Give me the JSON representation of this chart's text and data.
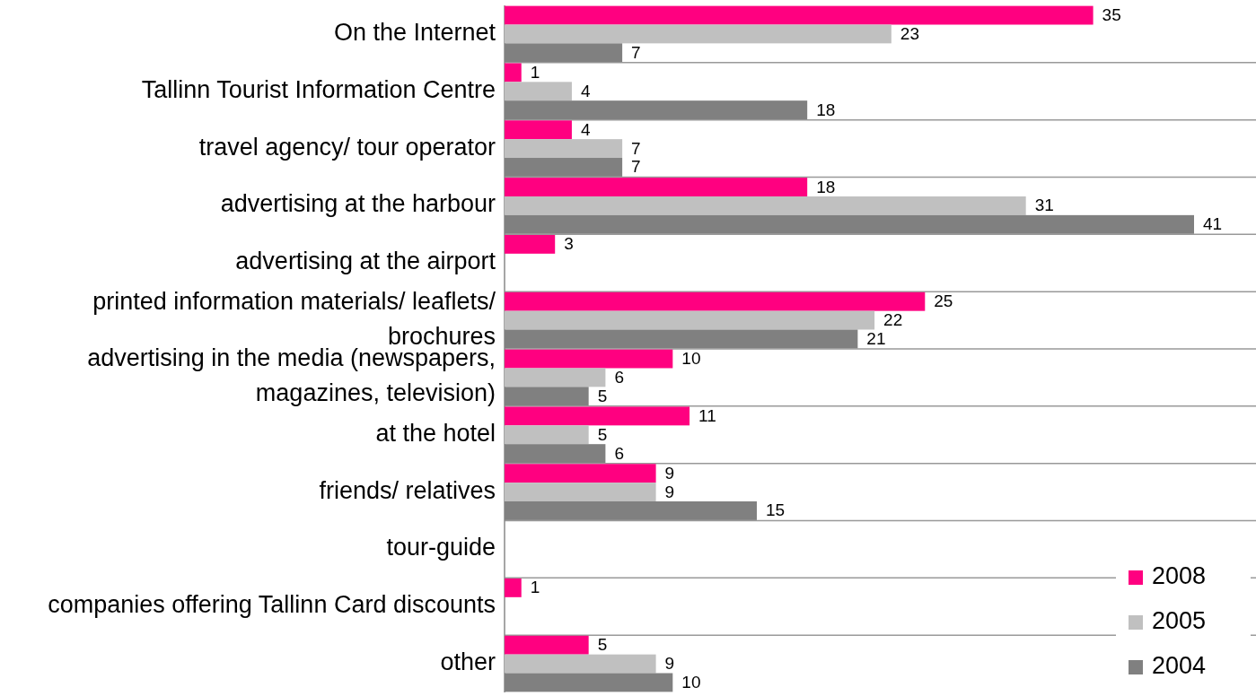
{
  "chart_data": {
    "type": "bar",
    "orientation": "horizontal",
    "categories": [
      "On the Internet",
      "Tallinn Tourist Information Centre",
      "travel agency/ tour operator",
      "advertising at the harbour",
      "advertising at the airport",
      "printed information materials/ leaflets/ brochures",
      "advertising in the media (newspapers, magazines, television)",
      "at the hotel",
      "friends/ relatives",
      "tour-guide",
      "companies offering Tallinn Card discounts",
      "other"
    ],
    "series": [
      {
        "name": "2008",
        "color": "#ff0080",
        "values": [
          35,
          1,
          4,
          18,
          3,
          25,
          10,
          11,
          9,
          null,
          1,
          5
        ]
      },
      {
        "name": "2005",
        "color": "#c0c0c0",
        "values": [
          23,
          4,
          7,
          31,
          null,
          22,
          6,
          5,
          9,
          null,
          null,
          9
        ]
      },
      {
        "name": "2004",
        "color": "#808080",
        "values": [
          7,
          18,
          7,
          41,
          null,
          21,
          5,
          6,
          15,
          null,
          null,
          10
        ]
      }
    ],
    "data_labels": true,
    "grid": "y",
    "legend": "bottom right"
  }
}
